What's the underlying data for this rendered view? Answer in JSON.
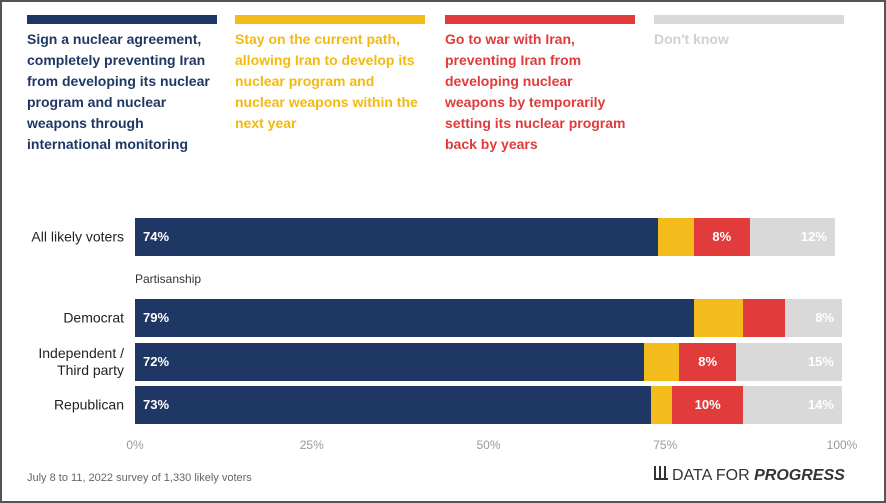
{
  "chart_data": {
    "type": "stacked_bar_horizontal",
    "categories": [
      "All likely voters",
      "Democrat",
      "Independent / Third party",
      "Republican"
    ],
    "group_label": "Partisanship",
    "series": [
      {
        "name": "Sign a nuclear agreement, completely preventing Iran from developing its nuclear program and nuclear weapons through international monitoring",
        "color": "#1f3764",
        "values": [
          74,
          79,
          72,
          73
        ],
        "value_labels": [
          "74%",
          "79%",
          "72%",
          "73%"
        ]
      },
      {
        "name": "Stay on the current path, allowing Iran to develop its nuclear program and nuclear weapons within the next year",
        "color": "#f4bb1c",
        "values": [
          5,
          7,
          5,
          3
        ],
        "value_labels": [
          null,
          null,
          null,
          null
        ]
      },
      {
        "name": "Go to war with Iran, preventing Iran from developing nuclear weapons by temporarily setting its nuclear program back by years",
        "color": "#e23b3b",
        "values": [
          8,
          6,
          8,
          10
        ],
        "value_labels": [
          "8%",
          null,
          "8%",
          "10%"
        ]
      },
      {
        "name": "Don't know",
        "color": "#d9d9d9",
        "values": [
          12,
          8,
          15,
          14
        ],
        "value_labels": [
          "12%",
          "8%",
          "15%",
          "14%"
        ]
      }
    ],
    "xlim": [
      0,
      100
    ],
    "xticks": [
      {
        "value": 0,
        "label": "0%"
      },
      {
        "value": 25,
        "label": "25%"
      },
      {
        "value": 50,
        "label": "50%"
      },
      {
        "value": 75,
        "label": "75%"
      },
      {
        "value": 100,
        "label": "100%"
      }
    ],
    "source": "July 8 to 11, 2022 survey of 1,330 likely voters",
    "brand": {
      "prefix": "DATA FOR",
      "emphasis": "PROGRESS"
    }
  }
}
